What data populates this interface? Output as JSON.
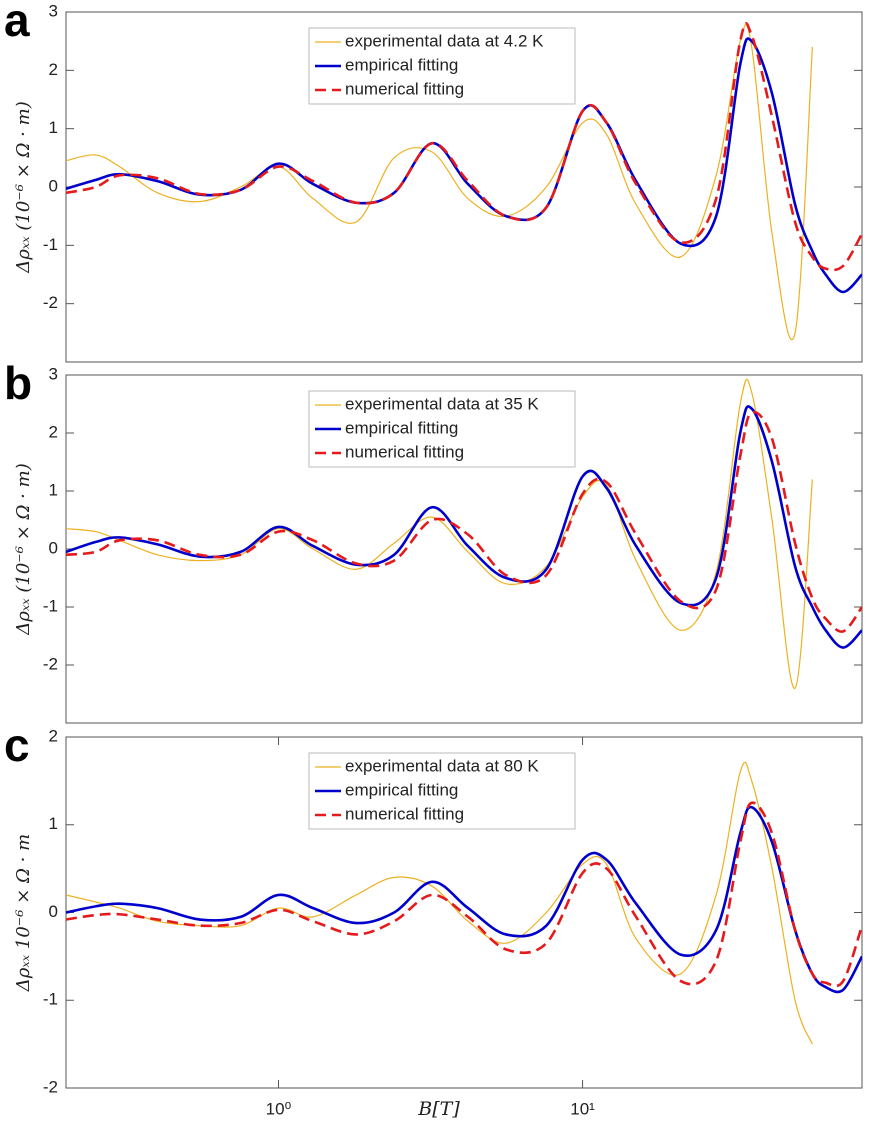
{
  "chart_data": [
    {
      "type": "line",
      "panel_label": "a",
      "ylabel": "Δρₓₓ (10⁻⁶ × Ω · m)",
      "log_x": true,
      "legend": "north",
      "xlim": [
        0.2,
        83
      ],
      "ylim": [
        -3,
        3
      ],
      "yticks": [
        -2,
        -1,
        0,
        1,
        2,
        3
      ],
      "x": [
        0.2,
        0.25,
        0.3,
        0.4,
        0.55,
        0.75,
        1,
        1.3,
        1.8,
        2.4,
        3.2,
        4.2,
        5.6,
        7.6,
        10,
        12,
        15,
        21,
        27.5,
        33,
        36,
        42,
        50,
        57,
        63,
        72,
        83
      ],
      "series": [
        {
          "name": "experimental data at 4.2 K",
          "color": "#EDB120",
          "line_style": "solid",
          "values": [
            0.45,
            0.55,
            0.35,
            -0.1,
            -0.25,
            0.0,
            0.35,
            -0.2,
            -0.6,
            0.5,
            0.6,
            -0.2,
            -0.5,
            0.0,
            1.1,
            0.9,
            -0.3,
            -1.2,
            0.2,
            2.5,
            2.4,
            -0.8,
            -2.5,
            2.4,
            null,
            null,
            null
          ]
        },
        {
          "name": "empirical fitting",
          "color": "#0000CC",
          "line_style": "solid",
          "values": [
            -0.03,
            0.12,
            0.22,
            0.1,
            -0.13,
            -0.05,
            0.4,
            0.05,
            -0.27,
            -0.1,
            0.75,
            0.05,
            -0.5,
            -0.35,
            1.3,
            1.1,
            0.1,
            -0.97,
            -0.5,
            2.1,
            2.5,
            1.6,
            -0.3,
            -1.1,
            -1.5,
            -1.8,
            -1.5
          ]
        },
        {
          "name": "numerical fitting",
          "color": "#E41A1C",
          "line_style": "dashed",
          "values": [
            -0.1,
            0.0,
            0.2,
            0.15,
            -0.12,
            -0.05,
            0.35,
            0.1,
            -0.27,
            -0.1,
            0.75,
            0.1,
            -0.5,
            -0.35,
            1.3,
            1.1,
            0.05,
            -0.95,
            -0.2,
            2.5,
            2.6,
            1.2,
            -0.6,
            -1.2,
            -1.4,
            -1.35,
            -0.8
          ]
        }
      ]
    },
    {
      "type": "line",
      "panel_label": "b",
      "ylabel": "Δρₓₓ (10⁻⁶ × Ω · m)",
      "log_x": true,
      "legend": "north",
      "xlim": [
        0.2,
        83
      ],
      "ylim": [
        -3,
        3
      ],
      "yticks": [
        -2,
        -1,
        0,
        1,
        2,
        3
      ],
      "x": [
        0.2,
        0.25,
        0.3,
        0.4,
        0.55,
        0.75,
        1,
        1.3,
        1.8,
        2.4,
        3.2,
        4.2,
        5.6,
        7.6,
        10,
        12,
        15,
        21,
        27.5,
        33,
        36,
        42,
        50,
        57,
        63,
        72,
        83
      ],
      "series": [
        {
          "name": "experimental data at 35 K",
          "color": "#EDB120",
          "line_style": "solid",
          "values": [
            0.35,
            0.3,
            0.15,
            -0.1,
            -0.2,
            -0.1,
            0.35,
            0.0,
            -0.35,
            0.1,
            0.55,
            -0.05,
            -0.6,
            -0.3,
            0.9,
            1.1,
            -0.2,
            -1.4,
            -0.4,
            2.5,
            2.7,
            0.5,
            -2.4,
            1.2,
            null,
            null,
            null
          ]
        },
        {
          "name": "empirical fitting",
          "color": "#0000CC",
          "line_style": "solid",
          "values": [
            -0.05,
            0.12,
            0.2,
            0.08,
            -0.13,
            -0.05,
            0.38,
            0.05,
            -0.27,
            -0.1,
            0.72,
            0.05,
            -0.5,
            -0.35,
            1.25,
            1.05,
            0.05,
            -0.93,
            -0.5,
            2.0,
            2.42,
            1.5,
            -0.3,
            -1.0,
            -1.4,
            -1.7,
            -1.4
          ]
        },
        {
          "name": "numerical fitting",
          "color": "#E41A1C",
          "line_style": "dashed",
          "values": [
            -0.1,
            -0.05,
            0.15,
            0.15,
            -0.1,
            -0.1,
            0.3,
            0.15,
            -0.25,
            -0.2,
            0.5,
            0.25,
            -0.45,
            -0.45,
            0.95,
            1.15,
            0.25,
            -0.9,
            -0.7,
            1.6,
            2.35,
            1.9,
            0.1,
            -0.85,
            -1.2,
            -1.42,
            -1.0
          ]
        }
      ]
    },
    {
      "type": "line",
      "panel_label": "c",
      "ylabel": "Δρₓₓ 10⁻⁶ × Ω · m",
      "xlabel": "B[T]",
      "log_x": true,
      "legend": "north",
      "xlim": [
        0.2,
        83
      ],
      "ylim": [
        -2,
        2
      ],
      "yticks": [
        -2,
        -1,
        0,
        1,
        2
      ],
      "xticks": [
        {
          "value": 1,
          "label": "10⁰"
        },
        {
          "value": 10,
          "label": "10¹"
        }
      ],
      "x": [
        0.2,
        0.25,
        0.3,
        0.4,
        0.55,
        0.75,
        1,
        1.3,
        1.8,
        2.4,
        3.2,
        4.2,
        5.6,
        7.6,
        10,
        12,
        15,
        21,
        27.5,
        33,
        36,
        42,
        50,
        57,
        63,
        72,
        83
      ],
      "series": [
        {
          "name": "experimental data at 80 K",
          "color": "#EDB120",
          "line_style": "solid",
          "values": [
            0.2,
            0.12,
            0.05,
            -0.1,
            -0.15,
            -0.15,
            0.05,
            -0.05,
            0.2,
            0.4,
            0.3,
            -0.1,
            -0.35,
            0.0,
            0.55,
            0.55,
            -0.3,
            -0.7,
            0.2,
            1.6,
            1.5,
            0.5,
            -1.0,
            -1.5,
            null,
            null,
            null
          ]
        },
        {
          "name": "empirical fitting",
          "color": "#0000CC",
          "line_style": "solid",
          "values": [
            0.0,
            0.07,
            0.1,
            0.05,
            -0.08,
            -0.05,
            0.2,
            0.05,
            -0.12,
            0.0,
            0.35,
            0.05,
            -0.25,
            -0.15,
            0.6,
            0.6,
            0.1,
            -0.48,
            -0.2,
            0.9,
            1.2,
            0.8,
            -0.2,
            -0.7,
            -0.85,
            -0.88,
            -0.5
          ]
        },
        {
          "name": "numerical fitting",
          "color": "#E41A1C",
          "line_style": "dashed",
          "values": [
            -0.08,
            -0.03,
            -0.02,
            -0.08,
            -0.15,
            -0.12,
            0.03,
            -0.1,
            -0.25,
            -0.1,
            0.2,
            -0.05,
            -0.42,
            -0.35,
            0.45,
            0.5,
            -0.05,
            -0.78,
            -0.55,
            0.8,
            1.25,
            0.9,
            -0.2,
            -0.7,
            -0.8,
            -0.78,
            -0.15
          ]
        }
      ]
    }
  ]
}
